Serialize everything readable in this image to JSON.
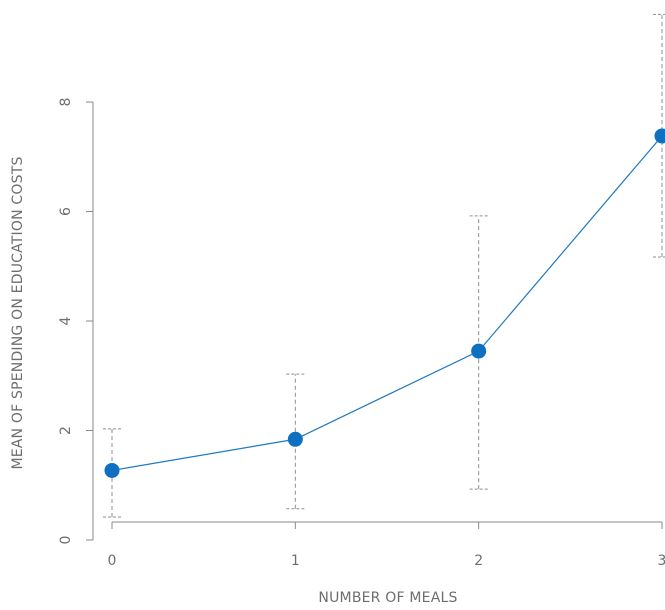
{
  "chart_data": {
    "type": "line",
    "xlabel": "NUMBER OF MEALS",
    "ylabel": "MEAN OF SPENDING ON EDUCATION COSTS",
    "x": [
      0,
      1,
      2,
      3
    ],
    "x_ticks": [
      "0",
      "1",
      "2",
      "3"
    ],
    "y_ticks": [
      "0",
      "2",
      "4",
      "6",
      "8"
    ],
    "xlim": [
      0,
      3
    ],
    "ylim": [
      0,
      8
    ],
    "grid": false,
    "series": [
      {
        "values": [
          1.27,
          1.84,
          3.45,
          7.38
        ],
        "lower": [
          0.42,
          0.57,
          0.93,
          5.17
        ],
        "upper": [
          2.03,
          3.03,
          5.92,
          9.6
        ]
      }
    ],
    "colors": {
      "line": "#1f78c1",
      "point": "#0f6fc0",
      "error_bar": "#8f8f8f",
      "axis": "#8a8a8a"
    }
  }
}
